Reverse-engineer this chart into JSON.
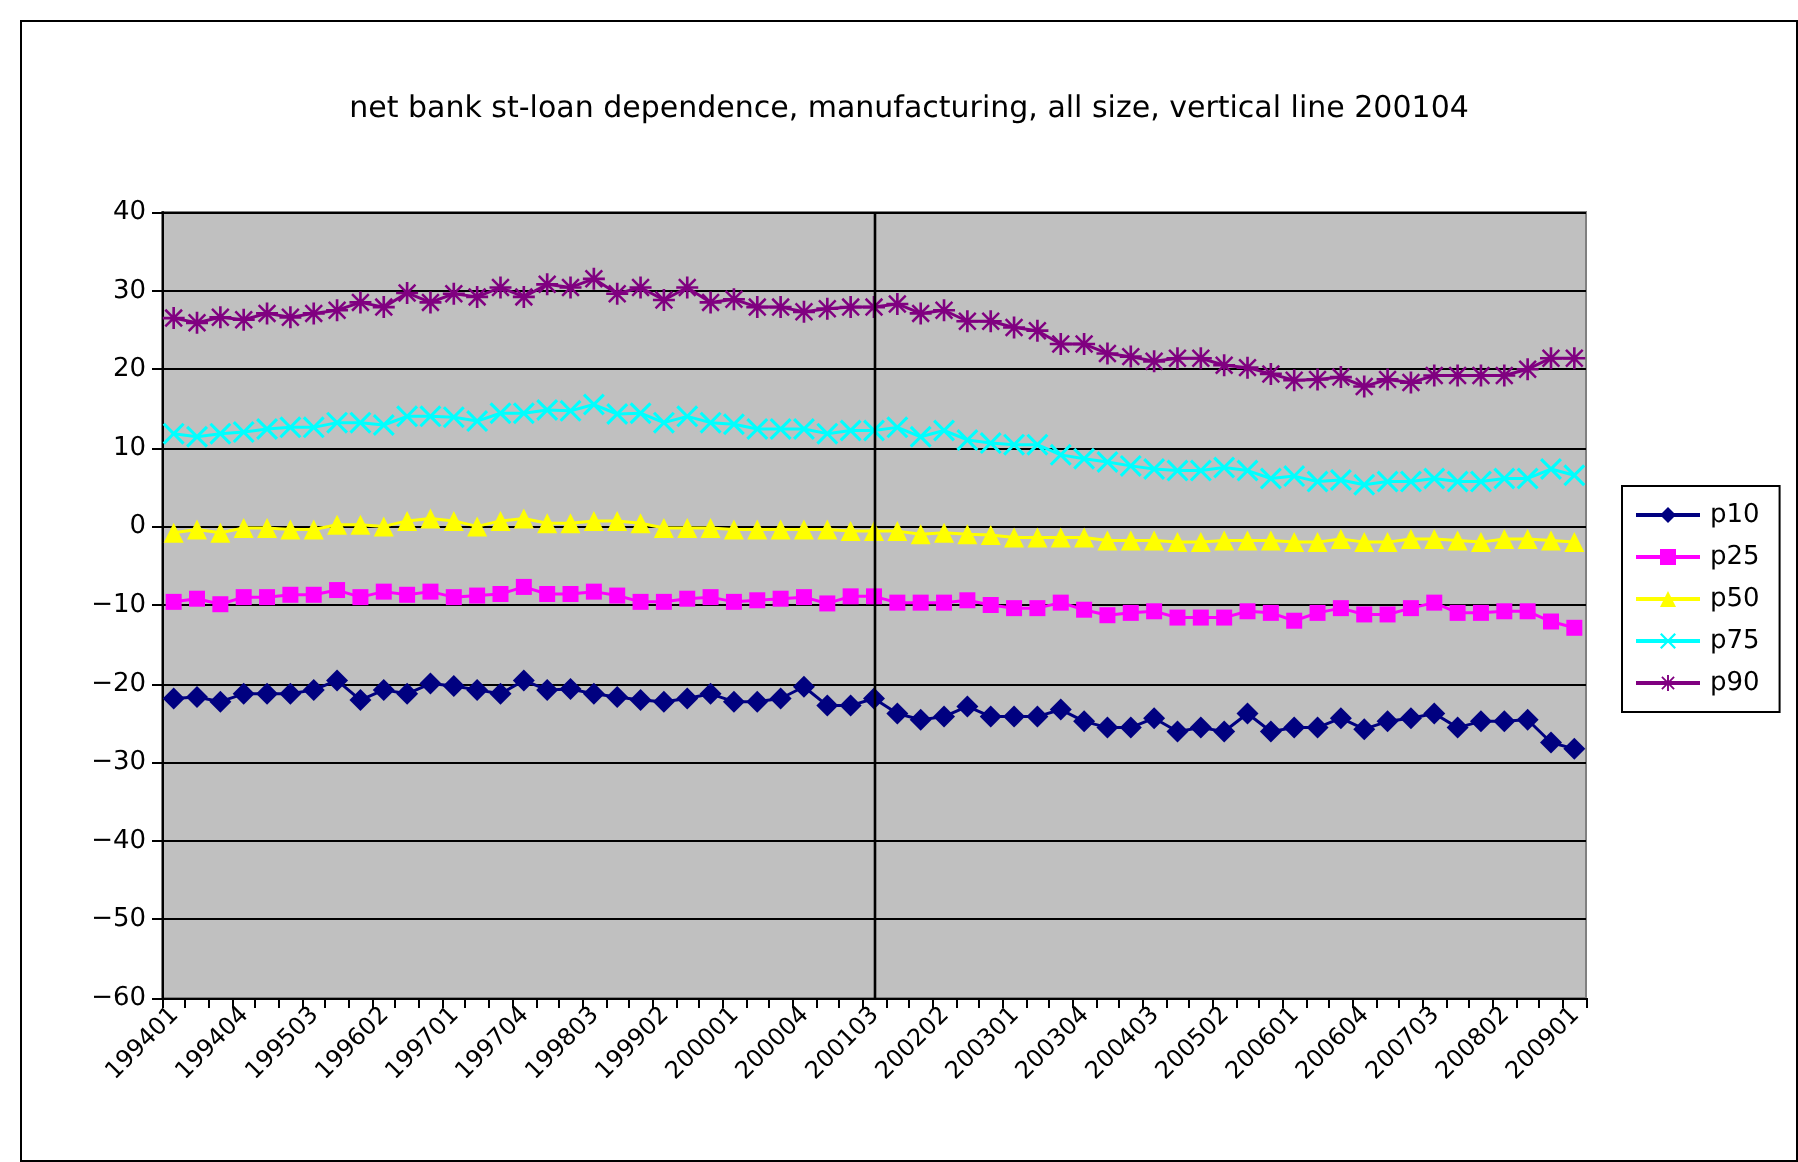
{
  "chart_data": {
    "type": "line",
    "title": "net bank st-loan dependence, manufacturing, all size, vertical line 200104",
    "categories": [
      "199401",
      null,
      null,
      "199404",
      null,
      null,
      "199503",
      null,
      null,
      "199602",
      null,
      null,
      "199701",
      null,
      null,
      "199704",
      null,
      null,
      "199803",
      null,
      null,
      "199902",
      null,
      null,
      "200001",
      null,
      null,
      "200004",
      null,
      null,
      "200103",
      null,
      null,
      "200202",
      null,
      null,
      "200301",
      null,
      null,
      "200304",
      null,
      null,
      "200403",
      null,
      null,
      "200502",
      null,
      null,
      "200601",
      null,
      null,
      "200604",
      null,
      null,
      "200703",
      null,
      null,
      "200802",
      null,
      null,
      "200901"
    ],
    "series": [
      {
        "name": "p10",
        "color": "#000080",
        "marker": "diamond",
        "values": [
          -21.9,
          -21.7,
          -22.3,
          -21.3,
          -21.3,
          -21.3,
          -20.8,
          -19.6,
          -22.1,
          -20.8,
          -21.3,
          -20.0,
          -20.3,
          -20.8,
          -21.3,
          -19.6,
          -20.8,
          -20.7,
          -21.3,
          -21.7,
          -22.1,
          -22.3,
          -21.9,
          -21.3,
          -22.3,
          -22.3,
          -21.9,
          -20.4,
          -22.8,
          -22.8,
          -21.9,
          -23.8,
          -24.6,
          -24.2,
          -22.9,
          -24.2,
          -24.2,
          -24.2,
          -23.3,
          -24.8,
          -25.6,
          -25.6,
          -24.4,
          -26.1,
          -25.6,
          -26.1,
          -23.8,
          -26.1,
          -25.6,
          -25.6,
          -24.4,
          -25.8,
          -24.8,
          -24.4,
          -23.8,
          -25.6,
          -24.8,
          -24.8,
          -24.6,
          -27.5,
          -28.3
        ]
      },
      {
        "name": "p25",
        "color": "#ff00ff",
        "marker": "square",
        "values": [
          -9.6,
          -9.2,
          -9.9,
          -9.0,
          -9.0,
          -8.7,
          -8.7,
          -8.1,
          -9.0,
          -8.3,
          -8.7,
          -8.3,
          -9.0,
          -8.8,
          -8.6,
          -7.7,
          -8.6,
          -8.6,
          -8.3,
          -8.8,
          -9.6,
          -9.6,
          -9.2,
          -9.0,
          -9.6,
          -9.4,
          -9.2,
          -9.0,
          -9.8,
          -8.9,
          -8.9,
          -9.7,
          -9.7,
          -9.7,
          -9.4,
          -10.0,
          -10.4,
          -10.4,
          -9.7,
          -10.6,
          -11.3,
          -11.0,
          -10.8,
          -11.6,
          -11.6,
          -11.6,
          -10.8,
          -11.0,
          -12.0,
          -11.0,
          -10.4,
          -11.2,
          -11.2,
          -10.4,
          -9.7,
          -11.0,
          -11.0,
          -10.8,
          -10.8,
          -12.1,
          -12.9
        ]
      },
      {
        "name": "p50",
        "color": "#ffff00",
        "marker": "triangle",
        "values": [
          -0.8,
          -0.4,
          -0.8,
          -0.2,
          -0.2,
          -0.4,
          -0.4,
          0.2,
          0.2,
          0,
          0.7,
          1.0,
          0.7,
          0,
          0.7,
          1.0,
          0.4,
          0.4,
          0.7,
          0.7,
          0.4,
          -0.2,
          -0.2,
          -0.2,
          -0.4,
          -0.4,
          -0.4,
          -0.4,
          -0.4,
          -0.6,
          -0.6,
          -0.6,
          -1.0,
          -0.8,
          -1.0,
          -1.1,
          -1.4,
          -1.4,
          -1.4,
          -1.4,
          -1.8,
          -1.8,
          -1.8,
          -2.0,
          -2.0,
          -1.8,
          -1.8,
          -1.8,
          -2.0,
          -2.0,
          -1.6,
          -2.0,
          -2.0,
          -1.6,
          -1.6,
          -1.8,
          -2.0,
          -1.6,
          -1.6,
          -1.8,
          -2.0
        ]
      },
      {
        "name": "p75",
        "color": "#00ffff",
        "marker": "cross",
        "values": [
          11.8,
          11.4,
          11.8,
          12.0,
          12.4,
          12.6,
          12.6,
          13.2,
          13.2,
          12.9,
          14.0,
          14.0,
          13.9,
          13.4,
          14.4,
          14.4,
          14.8,
          14.7,
          15.5,
          14.3,
          14.4,
          13.2,
          14.0,
          13.2,
          13.0,
          12.4,
          12.4,
          12.4,
          11.8,
          12.2,
          12.2,
          12.6,
          11.4,
          12.2,
          11.0,
          10.6,
          10.4,
          10.4,
          9.1,
          8.6,
          8.2,
          7.7,
          7.3,
          7.1,
          7.1,
          7.5,
          7.1,
          6.1,
          6.4,
          5.7,
          5.9,
          5.3,
          5.7,
          5.7,
          6.1,
          5.7,
          5.7,
          6.1,
          6.1,
          7.3,
          6.5
        ]
      },
      {
        "name": "p90",
        "color": "#800080",
        "marker": "star",
        "values": [
          26.5,
          25.9,
          26.6,
          26.3,
          27.1,
          26.6,
          27.1,
          27.5,
          28.5,
          27.9,
          29.7,
          28.5,
          29.6,
          29.2,
          30.4,
          29.2,
          30.8,
          30.4,
          31.5,
          29.6,
          30.4,
          28.8,
          30.4,
          28.5,
          28.9,
          27.9,
          27.9,
          27.3,
          27.7,
          27.9,
          27.9,
          28.3,
          27.1,
          27.5,
          26.1,
          26.1,
          25.3,
          24.9,
          23.2,
          23.2,
          22.0,
          21.6,
          21.0,
          21.4,
          21.4,
          20.5,
          20.2,
          19.4,
          18.6,
          18.7,
          19.0,
          17.8,
          18.7,
          18.3,
          19.2,
          19.2,
          19.2,
          19.2,
          20.0,
          21.4,
          21.4
        ]
      }
    ],
    "ylim": [
      -60,
      40
    ],
    "yticks": [
      -60,
      -50,
      -40,
      -30,
      -20,
      -10,
      0,
      10,
      20,
      30,
      40
    ],
    "grid": "y",
    "legend": "right",
    "ref_lines": [
      {
        "axis": "x",
        "value": "200103",
        "color": "#000000"
      }
    ]
  }
}
